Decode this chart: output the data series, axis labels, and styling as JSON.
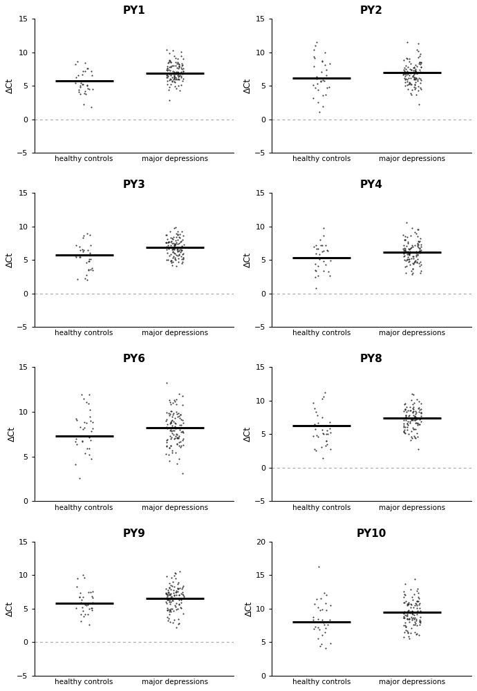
{
  "panels": [
    {
      "title": "PY1",
      "ylim": [
        -5,
        15
      ],
      "yticks": [
        -5,
        0,
        5,
        10,
        15
      ],
      "healthy_median": 5.7,
      "depression_median": 6.9,
      "healthy_n": 32,
      "depression_n": 110,
      "healthy_mean": 5.7,
      "healthy_std": 1.7,
      "depression_mean": 6.9,
      "depression_std": 1.4,
      "has_zero_line": true
    },
    {
      "title": "PY2",
      "ylim": [
        -5,
        15
      ],
      "yticks": [
        -5,
        0,
        5,
        10,
        15
      ],
      "healthy_median": 6.2,
      "depression_median": 7.0,
      "healthy_n": 32,
      "depression_n": 110,
      "healthy_mean": 6.2,
      "healthy_std": 2.2,
      "depression_mean": 7.0,
      "depression_std": 1.5,
      "has_zero_line": true
    },
    {
      "title": "PY3",
      "ylim": [
        -5,
        15
      ],
      "yticks": [
        -5,
        0,
        5,
        10,
        15
      ],
      "healthy_median": 5.8,
      "depression_median": 6.9,
      "healthy_n": 32,
      "depression_n": 110,
      "healthy_mean": 5.8,
      "healthy_std": 2.0,
      "depression_mean": 6.9,
      "depression_std": 1.5,
      "has_zero_line": true
    },
    {
      "title": "PY4",
      "ylim": [
        -5,
        15
      ],
      "yticks": [
        -5,
        0,
        5,
        10,
        15
      ],
      "healthy_median": 5.3,
      "depression_median": 6.2,
      "healthy_n": 32,
      "depression_n": 110,
      "healthy_mean": 5.3,
      "healthy_std": 1.8,
      "depression_mean": 6.2,
      "depression_std": 1.6,
      "has_zero_line": true
    },
    {
      "title": "PY6",
      "ylim": [
        0,
        15
      ],
      "yticks": [
        0,
        5,
        10,
        15
      ],
      "healthy_median": 7.3,
      "depression_median": 8.2,
      "healthy_n": 32,
      "depression_n": 110,
      "healthy_mean": 7.3,
      "healthy_std": 2.2,
      "depression_mean": 8.2,
      "depression_std": 1.8,
      "has_zero_line": false
    },
    {
      "title": "PY8",
      "ylim": [
        -5,
        15
      ],
      "yticks": [
        -5,
        0,
        5,
        10,
        15
      ],
      "healthy_median": 6.3,
      "depression_median": 7.4,
      "healthy_n": 32,
      "depression_n": 110,
      "healthy_mean": 6.3,
      "healthy_std": 2.2,
      "depression_mean": 7.4,
      "depression_std": 1.6,
      "has_zero_line": true
    },
    {
      "title": "PY9",
      "ylim": [
        -5,
        15
      ],
      "yticks": [
        -5,
        0,
        5,
        10,
        15
      ],
      "healthy_median": 5.8,
      "depression_median": 6.5,
      "healthy_n": 32,
      "depression_n": 110,
      "healthy_mean": 5.8,
      "healthy_std": 1.9,
      "depression_mean": 6.5,
      "depression_std": 1.7,
      "has_zero_line": true
    },
    {
      "title": "PY10",
      "ylim": [
        0,
        20
      ],
      "yticks": [
        0,
        5,
        10,
        15,
        20
      ],
      "healthy_median": 8.0,
      "depression_median": 9.4,
      "healthy_n": 32,
      "depression_n": 110,
      "healthy_mean": 8.0,
      "healthy_std": 2.5,
      "depression_mean": 9.4,
      "depression_std": 2.0,
      "has_zero_line": false
    }
  ],
  "dot_color": "#2b2b2b",
  "median_line_color": "#000000",
  "zero_line_color": "#aaaaaa",
  "ylabel": "ΔCt",
  "xlabel_healthy": "healthy controls",
  "xlabel_depression": "major depressions"
}
